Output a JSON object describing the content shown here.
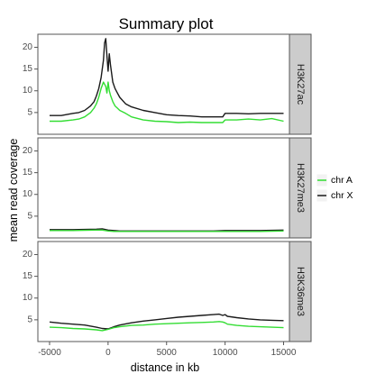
{
  "chart_data": {
    "type": "line",
    "title": "Summary plot",
    "xlabel": "distance in kb",
    "ylabel": "mean read coverage",
    "xlim": [
      -6000,
      15500
    ],
    "ylim": [
      0,
      23
    ],
    "x_ticks": [
      -5000,
      0,
      5000,
      10000,
      15000
    ],
    "x_tick_labels": [
      "-5000",
      "0",
      "5000",
      "10000",
      "15000"
    ],
    "y_ticks": [
      5,
      10,
      15,
      20
    ],
    "y_tick_labels": [
      "5",
      "10",
      "15",
      "20"
    ],
    "grid": false,
    "legend_position": "right",
    "legend": [
      {
        "name": "chr A",
        "color": "#33dd33"
      },
      {
        "name": "chr X",
        "color": "#1a1a1a"
      }
    ],
    "panels": [
      {
        "label": "H3K27ac",
        "series": [
          {
            "name": "chr A",
            "color": "#33dd33",
            "x": [
              -5000,
              -4000,
              -3000,
              -2500,
              -2000,
              -1500,
              -1200,
              -1000,
              -800,
              -600,
              -400,
              -200,
              -100,
              0,
              100,
              200,
              400,
              600,
              800,
              1000,
              1500,
              2000,
              3000,
              4000,
              5000,
              6000,
              7000,
              8000,
              9000,
              9800,
              10000,
              10200,
              11000,
              12000,
              13000,
              14000,
              15000
            ],
            "y": [
              3.0,
              3.0,
              3.3,
              3.5,
              4.0,
              5.0,
              6.0,
              7.0,
              8.5,
              10.5,
              12.0,
              11.0,
              9.5,
              12.0,
              10.0,
              9.0,
              7.5,
              6.5,
              6.0,
              5.5,
              4.8,
              4.0,
              3.3,
              3.0,
              2.9,
              2.7,
              2.8,
              2.7,
              2.7,
              2.7,
              3.3,
              3.3,
              3.3,
              3.5,
              3.3,
              3.6,
              3.0
            ]
          },
          {
            "name": "chr X",
            "color": "#1a1a1a",
            "x": [
              -5000,
              -4000,
              -3000,
              -2500,
              -2000,
              -1500,
              -1200,
              -1000,
              -800,
              -600,
              -400,
              -300,
              -200,
              -100,
              0,
              100,
              200,
              400,
              600,
              800,
              1000,
              1500,
              2000,
              3000,
              4000,
              5000,
              6000,
              7000,
              8000,
              9000,
              9800,
              10000,
              10200,
              11000,
              12000,
              13000,
              14000,
              15000
            ],
            "y": [
              4.3,
              4.3,
              4.8,
              5.0,
              5.5,
              6.5,
              7.5,
              8.8,
              10.5,
              13.0,
              17.0,
              21.0,
              22.0,
              18.0,
              14.5,
              18.5,
              16.0,
              12.0,
              10.5,
              9.5,
              8.5,
              7.0,
              6.3,
              5.5,
              5.0,
              4.5,
              4.3,
              4.2,
              4.0,
              4.0,
              4.0,
              4.8,
              4.8,
              4.8,
              4.7,
              4.8,
              4.8,
              4.8
            ]
          }
        ]
      },
      {
        "label": "H3K27me3",
        "series": [
          {
            "name": "chr A",
            "color": "#33dd33",
            "x": [
              -5000,
              -3000,
              -1000,
              -500,
              0,
              500,
              1000,
              3000,
              5000,
              7000,
              9000,
              10000,
              11000,
              13000,
              15000
            ],
            "y": [
              1.7,
              1.7,
              1.8,
              1.8,
              1.6,
              1.5,
              1.5,
              1.5,
              1.5,
              1.5,
              1.5,
              1.5,
              1.5,
              1.5,
              1.6
            ]
          },
          {
            "name": "chr X",
            "color": "#1a1a1a",
            "x": [
              -5000,
              -3000,
              -1000,
              -500,
              0,
              500,
              1000,
              3000,
              5000,
              7000,
              9000,
              10000,
              11000,
              13000,
              15000
            ],
            "y": [
              1.9,
              1.9,
              2.0,
              2.1,
              1.8,
              1.7,
              1.6,
              1.6,
              1.6,
              1.6,
              1.6,
              1.7,
              1.7,
              1.7,
              1.8
            ]
          }
        ]
      },
      {
        "label": "H3K36me3",
        "series": [
          {
            "name": "chr A",
            "color": "#33dd33",
            "x": [
              -5000,
              -4000,
              -3000,
              -2000,
              -1000,
              -500,
              0,
              500,
              1000,
              2000,
              3000,
              4000,
              5000,
              6000,
              7000,
              8000,
              9000,
              9500,
              9800,
              10000,
              10200,
              11000,
              12000,
              13000,
              14000,
              15000
            ],
            "y": [
              3.3,
              3.2,
              3.0,
              2.9,
              2.7,
              2.5,
              2.8,
              3.2,
              3.4,
              3.7,
              3.8,
              4.0,
              4.1,
              4.2,
              4.3,
              4.4,
              4.5,
              4.6,
              4.5,
              4.3,
              4.0,
              3.7,
              3.5,
              3.4,
              3.3,
              3.2
            ]
          },
          {
            "name": "chr X",
            "color": "#1a1a1a",
            "x": [
              -5000,
              -4000,
              -3000,
              -2000,
              -1000,
              -500,
              0,
              500,
              1000,
              2000,
              3000,
              4000,
              5000,
              6000,
              7000,
              8000,
              9000,
              9500,
              9800,
              10000,
              10200,
              11000,
              12000,
              13000,
              14000,
              15000
            ],
            "y": [
              4.5,
              4.2,
              4.0,
              3.8,
              3.3,
              3.0,
              2.9,
              3.4,
              3.8,
              4.3,
              4.7,
              5.0,
              5.3,
              5.6,
              5.8,
              6.0,
              6.2,
              6.3,
              6.0,
              6.2,
              5.8,
              5.5,
              5.2,
              5.0,
              4.9,
              4.8
            ]
          }
        ]
      }
    ]
  }
}
